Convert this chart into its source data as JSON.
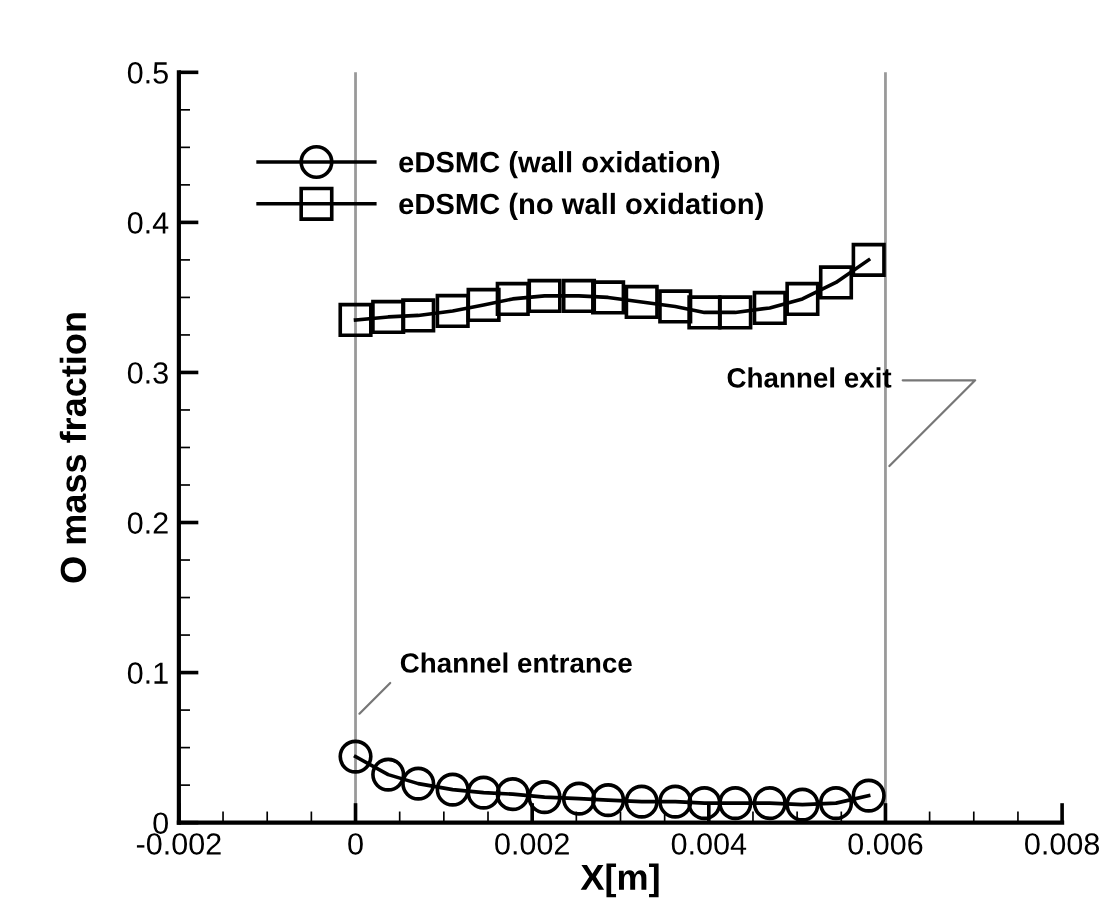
{
  "chart_data": {
    "type": "line",
    "xlabel": "X[m]",
    "ylabel": "O mass fraction",
    "x": [
      0,
      0.00037,
      0.00071,
      0.0011,
      0.00145,
      0.00178,
      0.00214,
      0.00253,
      0.00286,
      0.00324,
      0.00362,
      0.00395,
      0.0043,
      0.00469,
      0.00506,
      0.00544,
      0.00581
    ],
    "series": [
      {
        "name": "eDSMC (wall oxidation)",
        "color": "#000000",
        "marker": "circle",
        "values": [
          0.044,
          0.032,
          0.026,
          0.022,
          0.02,
          0.019,
          0.017,
          0.016,
          0.015,
          0.014,
          0.014,
          0.013,
          0.013,
          0.013,
          0.012,
          0.013,
          0.018
        ]
      },
      {
        "name": "eDSMC (no wall oxidation)",
        "color": "#000000",
        "marker": "square",
        "values": [
          0.335,
          0.337,
          0.338,
          0.341,
          0.345,
          0.349,
          0.351,
          0.351,
          0.35,
          0.347,
          0.344,
          0.34,
          0.34,
          0.343,
          0.349,
          0.36,
          0.375
        ]
      }
    ],
    "xlim": [
      -0.002,
      0.008
    ],
    "xticks": [
      -0.002,
      0,
      0.002,
      0.004,
      0.006,
      0.008
    ],
    "ylim": [
      0,
      0.5
    ],
    "yticks": [
      0,
      0.1,
      0.2,
      0.3,
      0.4,
      0.5
    ],
    "ref_lines": [
      {
        "axis": "x",
        "value": 0,
        "color": "#999999"
      },
      {
        "axis": "x",
        "value": 0.006,
        "color": "#999999"
      }
    ],
    "annotations": [
      {
        "text": "Channel entrance",
        "x": 0,
        "y": 0.07
      },
      {
        "text": "Channel exit",
        "x": 0.006,
        "y": 0.235
      }
    ],
    "legend": "top left",
    "grid": false,
    "line_style": "solid"
  }
}
